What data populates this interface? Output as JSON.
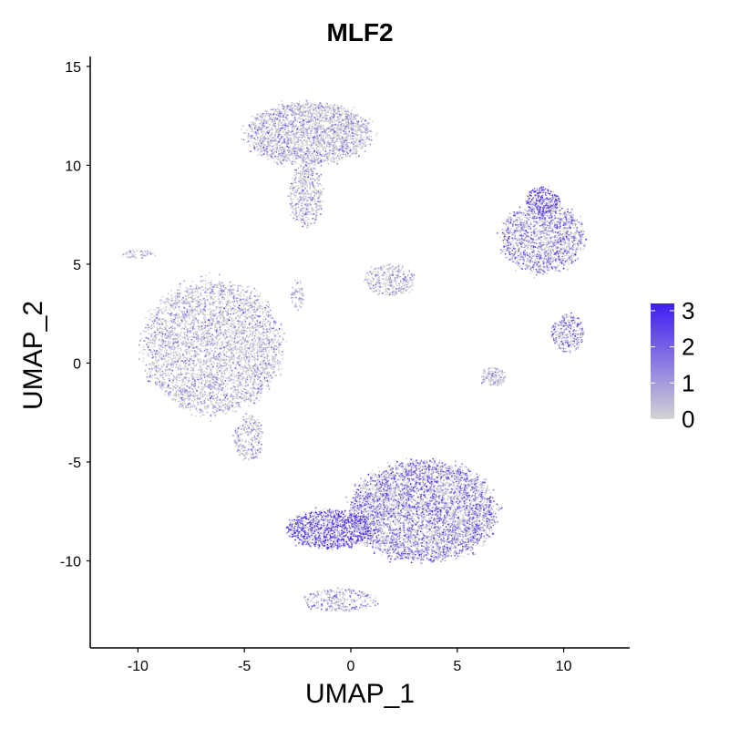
{
  "chart_data": {
    "type": "scatter",
    "title": "MLF2",
    "xlabel": "UMAP_1",
    "ylabel": "UMAP_2",
    "xlim": [
      -12.2,
      13.1
    ],
    "ylim": [
      -14.4,
      15.5
    ],
    "x_ticks": [
      -10,
      -5,
      0,
      5,
      10
    ],
    "y_ticks": [
      -10,
      -5,
      0,
      5,
      10,
      15
    ],
    "grid": false,
    "legend": {
      "placement": "right",
      "type": "colorbar",
      "ticks": [
        0,
        1,
        2,
        3
      ],
      "low_color": "#d3d3d3",
      "high_color": "#3f1cf2"
    },
    "clusters": [
      {
        "name_hint": "top-cluster",
        "cx": -2.0,
        "cy": 11.6,
        "rx": 3.0,
        "ry": 1.6,
        "n": 2400,
        "mean_expr": 0.6
      },
      {
        "name_hint": "top-cluster-tail",
        "cx": -2.1,
        "cy": 8.5,
        "rx": 0.8,
        "ry": 1.6,
        "n": 500,
        "mean_expr": 0.7
      },
      {
        "name_hint": "left-cluster",
        "cx": -6.5,
        "cy": 0.8,
        "rx": 3.3,
        "ry": 3.4,
        "n": 3800,
        "mean_expr": 0.5
      },
      {
        "name_hint": "left-cluster-tail",
        "cx": -4.8,
        "cy": -3.8,
        "rx": 0.7,
        "ry": 1.2,
        "n": 250,
        "mean_expr": 0.7
      },
      {
        "name_hint": "bottom-cluster",
        "cx": 3.4,
        "cy": -7.5,
        "rx": 3.5,
        "ry": 2.6,
        "n": 4500,
        "mean_expr": 1.5
      },
      {
        "name_hint": "bottom-cluster-left",
        "cx": -1.0,
        "cy": -8.4,
        "rx": 2.0,
        "ry": 1.0,
        "n": 1200,
        "mean_expr": 2.3
      },
      {
        "name_hint": "bottom-tail",
        "cx": -0.5,
        "cy": -12.0,
        "rx": 1.8,
        "ry": 0.6,
        "n": 300,
        "mean_expr": 1.0
      },
      {
        "name_hint": "right-cluster",
        "cx": 9.0,
        "cy": 6.3,
        "rx": 2.0,
        "ry": 1.8,
        "n": 1500,
        "mean_expr": 1.4
      },
      {
        "name_hint": "right-cluster-top",
        "cx": 9.0,
        "cy": 8.2,
        "rx": 0.8,
        "ry": 0.7,
        "n": 300,
        "mean_expr": 2.4
      },
      {
        "name_hint": "right-small-1",
        "cx": 10.2,
        "cy": 1.5,
        "rx": 0.8,
        "ry": 1.0,
        "n": 300,
        "mean_expr": 1.4
      },
      {
        "name_hint": "right-small-2",
        "cx": 6.7,
        "cy": -0.7,
        "rx": 0.6,
        "ry": 0.5,
        "n": 150,
        "mean_expr": 0.6
      },
      {
        "name_hint": "center-small",
        "cx": 1.8,
        "cy": 4.2,
        "rx": 1.2,
        "ry": 0.8,
        "n": 350,
        "mean_expr": 0.5
      },
      {
        "name_hint": "left-streak",
        "cx": -10.0,
        "cy": 5.5,
        "rx": 0.8,
        "ry": 0.2,
        "n": 60,
        "mean_expr": 0.3
      },
      {
        "name_hint": "mid-small",
        "cx": -2.5,
        "cy": 3.5,
        "rx": 0.3,
        "ry": 0.8,
        "n": 80,
        "mean_expr": 0.4
      }
    ]
  }
}
